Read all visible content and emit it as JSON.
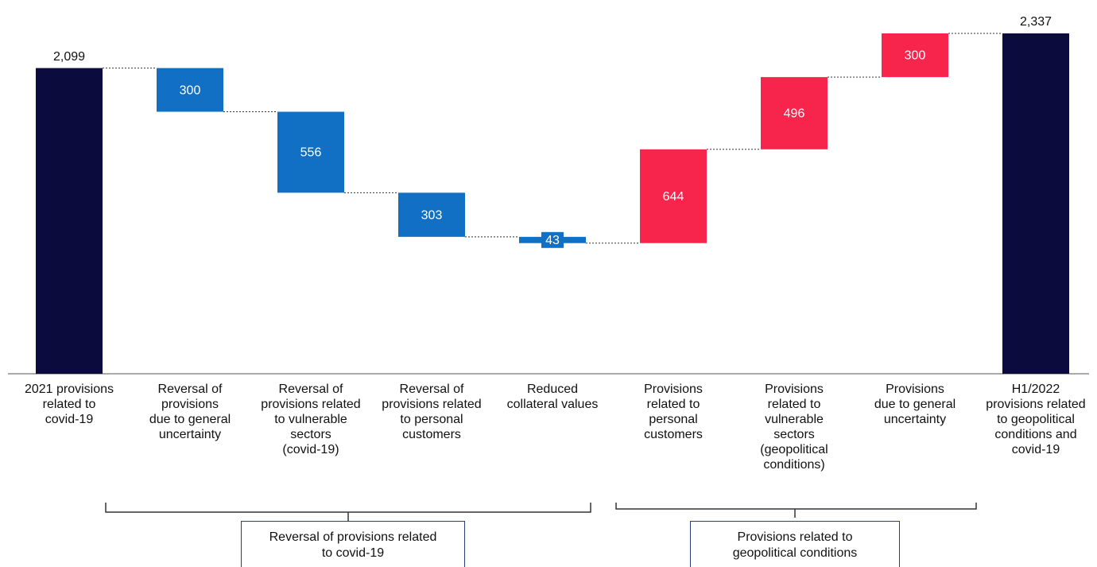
{
  "chart_data": {
    "type": "waterfall",
    "categories": [
      "2021 provisions\nrelated to\ncovid-19",
      "Reversal of\nprovisions\ndue to general\nuncertainty",
      "Reversal of\nprovisions related\nto vulnerable\nsectors\n(covid-19)",
      "Reversal of\nprovisions related\nto personal\ncustomers",
      "Reduced\ncollateral values",
      "Provisions\nrelated to\npersonal\ncustomers",
      "Provisions\nrelated to\nvulnerable\nsectors\n(geopolitical\nconditions)",
      "Provisions\ndue to general\nuncertainty",
      "H1/2022\nprovisions related\nto geopolitical\nconditions and\ncovid-19"
    ],
    "measures": [
      "absolute",
      "relative",
      "relative",
      "relative",
      "relative",
      "relative",
      "relative",
      "relative",
      "total"
    ],
    "values": [
      2099,
      -300,
      -556,
      -303,
      -43,
      644,
      496,
      300,
      2337
    ],
    "value_labels": [
      "2,099",
      "300",
      "556",
      "303",
      "43",
      "644",
      "496",
      "300",
      "2,337"
    ],
    "colors": {
      "total": "#0b0b3d",
      "decrease": "#1170c4",
      "increase": "#f7254c"
    },
    "groups": [
      "Reversal of provisions related\nto covid-19",
      "Provisions related to\ngeopolitical conditions"
    ]
  }
}
